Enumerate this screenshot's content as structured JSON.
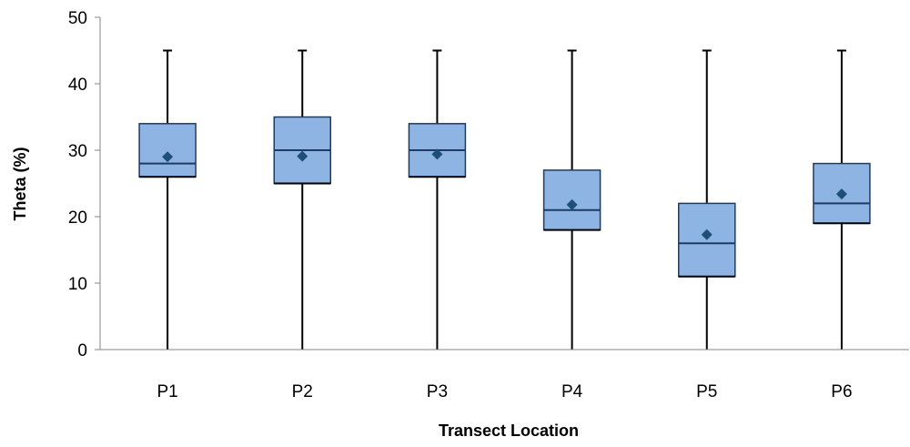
{
  "chart_data": {
    "type": "boxplot",
    "title": "",
    "xlabel": "Transect Location",
    "ylabel": "Theta (%)",
    "ylim": [
      0,
      50
    ],
    "yticks": [
      0,
      10,
      20,
      30,
      40,
      50
    ],
    "grid": false,
    "legend": "none",
    "categories": [
      "P1",
      "P2",
      "P3",
      "P4",
      "P5",
      "P6"
    ],
    "boxes": [
      {
        "category": "P1",
        "min": 0,
        "q1": 26,
        "median": 28,
        "q3": 34,
        "max": 45,
        "mean": 29.0
      },
      {
        "category": "P2",
        "min": 0,
        "q1": 25,
        "median": 30,
        "q3": 35,
        "max": 45,
        "mean": 29.1
      },
      {
        "category": "P3",
        "min": 0,
        "q1": 26,
        "median": 30,
        "q3": 34,
        "max": 45,
        "mean": 29.4
      },
      {
        "category": "P4",
        "min": 0,
        "q1": 18,
        "median": 21,
        "q3": 27,
        "max": 45,
        "mean": 21.8
      },
      {
        "category": "P5",
        "min": 0,
        "q1": 11,
        "median": 16,
        "q3": 22,
        "max": 45,
        "mean": 17.3
      },
      {
        "category": "P6",
        "min": 0,
        "q1": 19,
        "median": 22,
        "q3": 28,
        "max": 45,
        "mean": 23.4
      }
    ],
    "colors": {
      "box_fill": "#8DB4E2",
      "box_stroke": "#1F3B63",
      "whisker": "#000000",
      "mean_marker": "#1F4E79",
      "axis": "#868686"
    }
  }
}
